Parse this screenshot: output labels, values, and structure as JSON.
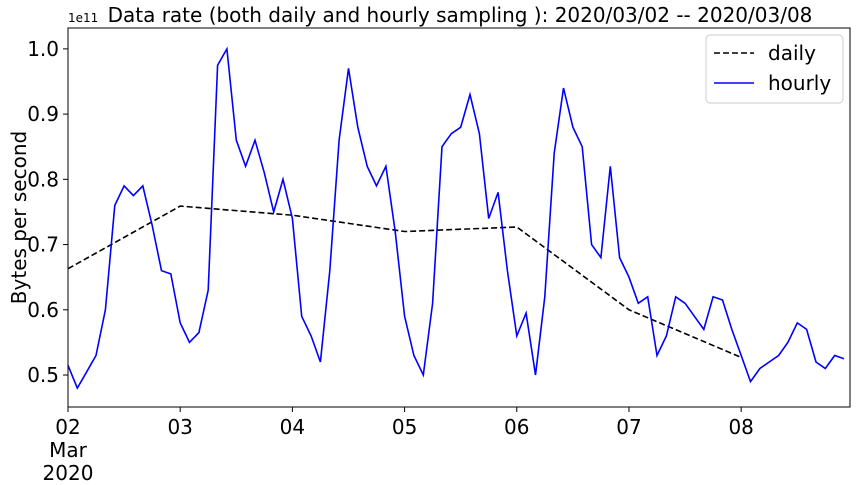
{
  "chart_data": {
    "type": "line",
    "title": "Data rate (both daily and hourly sampling ): 2020/03/02 -- 2020/03/08",
    "y_label": "Bytes per second",
    "y_offset_label": "1e11",
    "date_label": [
      "Mar",
      "2020"
    ],
    "xlim": [
      2,
      8.97
    ],
    "xticks": [
      {
        "value": 2,
        "label": "02"
      },
      {
        "value": 3,
        "label": "03"
      },
      {
        "value": 4,
        "label": "04"
      },
      {
        "value": 5,
        "label": "05"
      },
      {
        "value": 6,
        "label": "06"
      },
      {
        "value": 7,
        "label": "07"
      },
      {
        "value": 8,
        "label": "08"
      }
    ],
    "ylim": [
      0.451,
      1.032
    ],
    "yticks": [
      0.5,
      0.6,
      0.7,
      0.8,
      0.9,
      {
        "value": 1,
        "label": "1.0"
      }
    ],
    "legend_position": "upper right",
    "series": [
      {
        "name": "daily",
        "color": "#000000",
        "dash": true,
        "x": [
          2,
          3,
          4,
          5,
          6,
          7,
          8
        ],
        "values": [
          0.663,
          0.759,
          0.745,
          0.72,
          0.727,
          0.6,
          0.527
        ]
      },
      {
        "name": "hourly",
        "color": "#0000ff",
        "dash": false,
        "x": [
          2,
          2.0833,
          2.1667,
          2.25,
          2.3333,
          2.4167,
          2.5,
          2.5833,
          2.6667,
          2.75,
          2.8333,
          2.9167,
          3,
          3.0833,
          3.1667,
          3.25,
          3.3333,
          3.4167,
          3.5,
          3.5833,
          3.6667,
          3.75,
          3.8333,
          3.9167,
          4,
          4.0833,
          4.1667,
          4.25,
          4.3333,
          4.4167,
          4.5,
          4.5833,
          4.6667,
          4.75,
          4.8333,
          4.9167,
          5,
          5.0833,
          5.1667,
          5.25,
          5.3333,
          5.4167,
          5.5,
          5.5833,
          5.6667,
          5.75,
          5.8333,
          5.9167,
          6,
          6.0833,
          6.1667,
          6.25,
          6.3333,
          6.4167,
          6.5,
          6.5833,
          6.6667,
          6.75,
          6.8333,
          6.9167,
          7,
          7.0833,
          7.1667,
          7.25,
          7.3333,
          7.4167,
          7.5,
          7.5833,
          7.6667,
          7.75,
          7.8333,
          7.9167,
          8,
          8.0833,
          8.1667,
          8.25,
          8.3333,
          8.4167,
          8.5,
          8.5833,
          8.6667,
          8.75,
          8.8333,
          8.9167
        ],
        "values": [
          0.515,
          0.48,
          0.505,
          0.53,
          0.6,
          0.76,
          0.79,
          0.775,
          0.79,
          0.73,
          0.66,
          0.655,
          0.58,
          0.55,
          0.565,
          0.63,
          0.975,
          1.0,
          0.86,
          0.82,
          0.86,
          0.81,
          0.75,
          0.8,
          0.74,
          0.59,
          0.56,
          0.52,
          0.66,
          0.86,
          0.97,
          0.88,
          0.82,
          0.79,
          0.82,
          0.72,
          0.59,
          0.53,
          0.5,
          0.61,
          0.85,
          0.87,
          0.88,
          0.93,
          0.87,
          0.74,
          0.78,
          0.66,
          0.56,
          0.595,
          0.5,
          0.62,
          0.84,
          0.94,
          0.88,
          0.85,
          0.7,
          0.68,
          0.82,
          0.68,
          0.65,
          0.61,
          0.62,
          0.53,
          0.56,
          0.62,
          0.61,
          0.59,
          0.57,
          0.62,
          0.615,
          0.57,
          0.53,
          0.49,
          0.51,
          0.52,
          0.53,
          0.55,
          0.58,
          0.57,
          0.52,
          0.51,
          0.53,
          0.525
        ]
      }
    ]
  }
}
